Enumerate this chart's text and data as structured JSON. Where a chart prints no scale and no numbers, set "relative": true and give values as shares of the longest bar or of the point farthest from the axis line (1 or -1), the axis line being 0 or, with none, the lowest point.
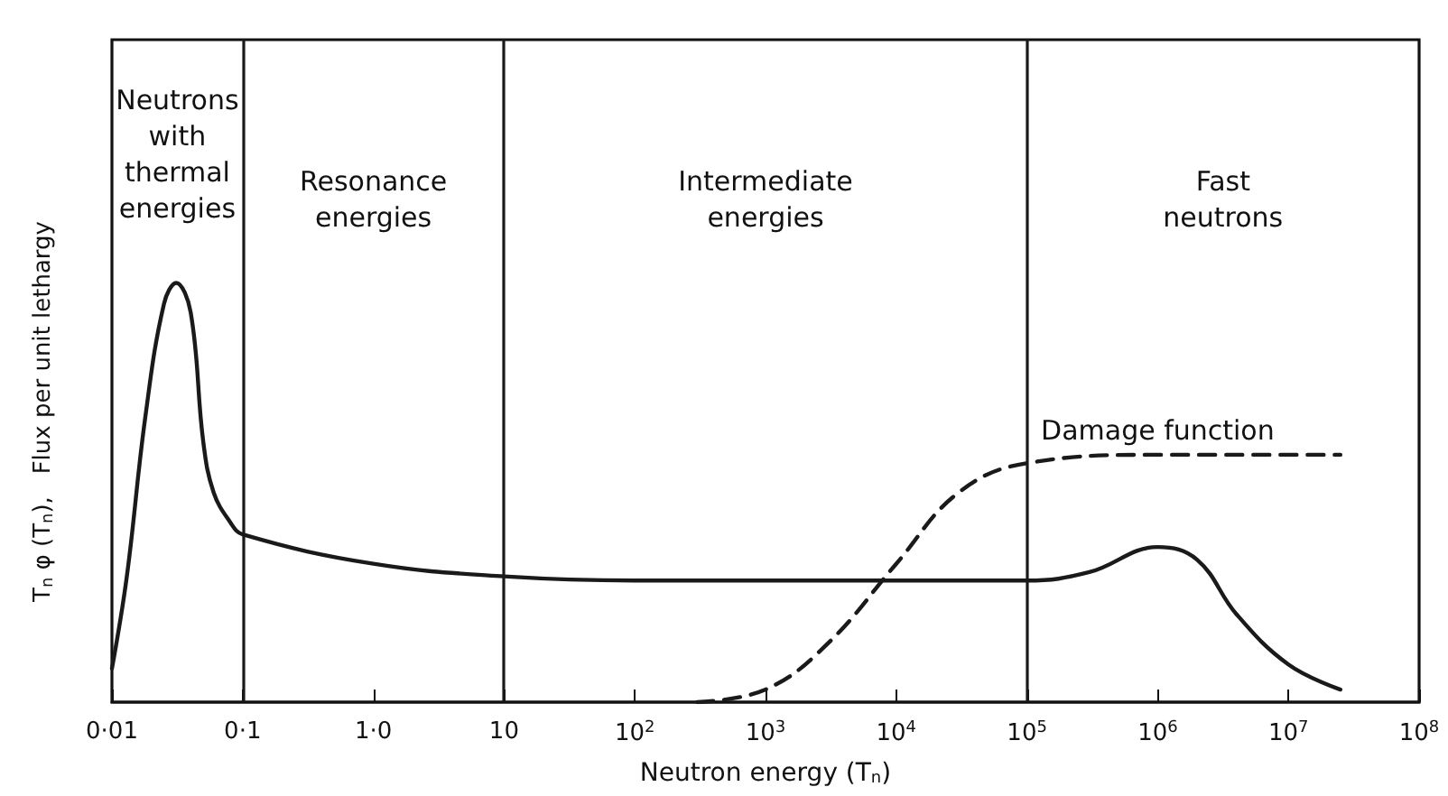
{
  "chart_data": {
    "type": "line",
    "relative": true,
    "xlabel": "Neutron energy (T$_{n}$)",
    "ylabel": "T$_{n}$ φ (T$_{n}$),   Flux per unit lethargy",
    "log": "x",
    "xlim": [
      0.01,
      100000000
    ],
    "xticks": [
      {
        "value": 0.01,
        "label": "0·01"
      },
      {
        "value": 0.1,
        "label": "0·1"
      },
      {
        "value": 1,
        "label": "1·0"
      },
      10,
      {
        "value": 100,
        "label": "10$^{2}$"
      },
      {
        "value": 1000,
        "label": "10$^{3}$"
      },
      {
        "value": 10000,
        "label": "10$^{4}$"
      },
      {
        "value": 100000,
        "label": "10$^{5}$"
      },
      {
        "value": 1000000,
        "label": "10$^{6}$"
      },
      {
        "value": 10000000,
        "label": "10$^{7}$"
      },
      {
        "value": 100000000,
        "label": "10$^{8}$"
      }
    ],
    "series": [
      {
        "color": "#1a1a1a",
        "line_style": "solid",
        "x": [
          0.01,
          0.013,
          0.018,
          0.025,
          0.031,
          0.04,
          0.05,
          0.06,
          0.08,
          0.1,
          1,
          10,
          100,
          1000,
          10000,
          100000,
          300000,
          1000000,
          2000000,
          4000000,
          10000000,
          25000000
        ],
        "values": [
          0.08,
          0.3,
          0.68,
          0.95,
          1,
          0.93,
          0.62,
          0.5,
          0.43,
          0.4,
          0.33,
          0.3,
          0.29,
          0.29,
          0.29,
          0.29,
          0.31,
          0.37,
          0.34,
          0.21,
          0.09,
          0.03
        ]
      },
      {
        "name": "Damage function",
        "color": "#1a1a1a",
        "line_style": "dashed",
        "x": [
          300,
          1000,
          3000,
          10000,
          30000,
          100000,
          1000000,
          25000000
        ],
        "values": [
          0,
          0.03,
          0.14,
          0.33,
          0.5,
          0.57,
          0.59,
          0.59
        ]
      }
    ],
    "ref_lines": [
      {
        "axis": "x",
        "value": 0.1,
        "color": "#1a1a1a"
      },
      {
        "axis": "x",
        "value": 10,
        "color": "#1a1a1a"
      },
      {
        "axis": "x",
        "value": 100000,
        "color": "#1a1a1a"
      }
    ],
    "annotations": [
      "Neutrons\nwith\nthermal\nenergies",
      "Resonance\nenergies",
      "Intermediate\nenergies",
      "Fast\nneutrons"
    ],
    "grid": false,
    "marker": "none"
  }
}
